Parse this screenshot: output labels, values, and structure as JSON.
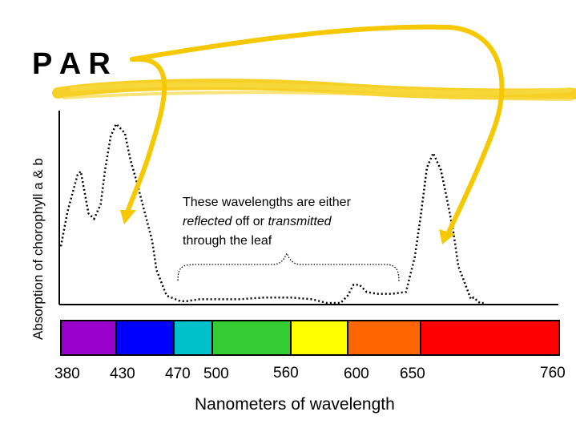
{
  "chart_data": {
    "type": "line",
    "title": "P A R",
    "ylabel": "Absorption of chorophyll a & b",
    "xlabel": "Nanometers of wavelength",
    "x_ticks": [
      "380",
      "430",
      "470",
      "500",
      "560",
      "600",
      "650",
      "760"
    ],
    "xlim": [
      380,
      760
    ],
    "ylim": [
      0,
      1
    ],
    "series": [
      {
        "x": [
          380,
          386,
          395,
          398,
          405,
          410,
          416,
          420,
          425,
          430,
          436,
          440,
          444,
          450,
          455,
          458,
          465,
          475,
          480,
          490,
          500,
          520,
          540,
          560,
          575,
          585,
          595,
          600,
          604,
          608,
          613,
          620,
          630,
          640,
          646,
          650,
          655,
          660,
          666,
          670,
          676,
          680,
          690,
          692,
          697,
          700
        ],
        "y": [
          0.31,
          0.5,
          0.7,
          0.72,
          0.49,
          0.46,
          0.54,
          0.73,
          0.91,
          0.98,
          0.93,
          0.78,
          0.67,
          0.49,
          0.34,
          0.18,
          0.04,
          0.01,
          0.01,
          0.02,
          0.02,
          0.02,
          0.03,
          0.03,
          0.02,
          0.0,
          0.0,
          0.04,
          0.1,
          0.1,
          0.06,
          0.05,
          0.05,
          0.06,
          0.25,
          0.47,
          0.74,
          0.82,
          0.73,
          0.6,
          0.39,
          0.2,
          0.02,
          0.03,
          0.0,
          0.0
        ]
      }
    ],
    "spectrum": [
      {
        "from": 380,
        "to": 430,
        "color": "#9900cc"
      },
      {
        "from": 430,
        "to": 470,
        "color": "#0000ff"
      },
      {
        "from": 470,
        "to": 500,
        "color": "#00c0cc"
      },
      {
        "from": 500,
        "to": 560,
        "color": "#33cc33"
      },
      {
        "from": 560,
        "to": 600,
        "color": "#ffff00"
      },
      {
        "from": 600,
        "to": 650,
        "color": "#ff6600"
      },
      {
        "from": 650,
        "to": 760,
        "color": "#ff0000"
      }
    ],
    "annotation": {
      "line1": "These wavelengths are either",
      "line2_italic_a": "reflected",
      "line2_normal": " off or ",
      "line2_italic_b": "transmitted",
      "line3": "through the leaf"
    },
    "arrow_color": "#f5c800",
    "highlight_color": "#f5c800"
  }
}
